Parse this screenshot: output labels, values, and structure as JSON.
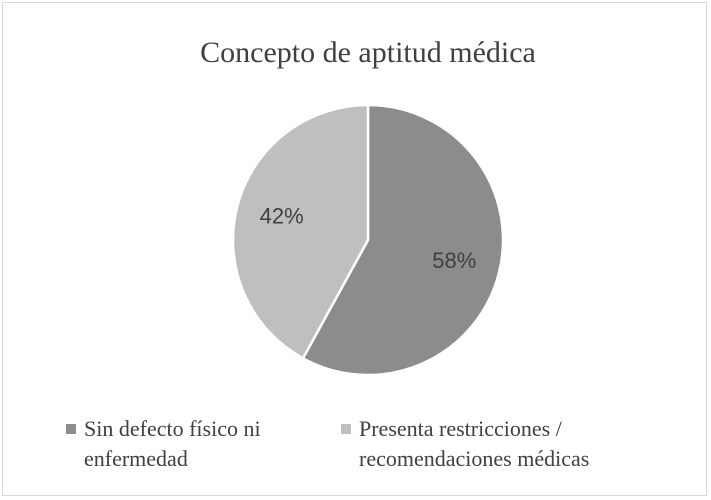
{
  "chart_data": {
    "type": "pie",
    "title": "Concepto de aptitud médica",
    "categories": [
      "Sin defecto físico ni enfermedad",
      "Presenta restricciones / recomendaciones médicas"
    ],
    "values": [
      58,
      42
    ],
    "value_labels": [
      "58%",
      "42%"
    ],
    "colors": [
      "#8c8c8c",
      "#bfbfbf"
    ],
    "legend": "bottom"
  }
}
